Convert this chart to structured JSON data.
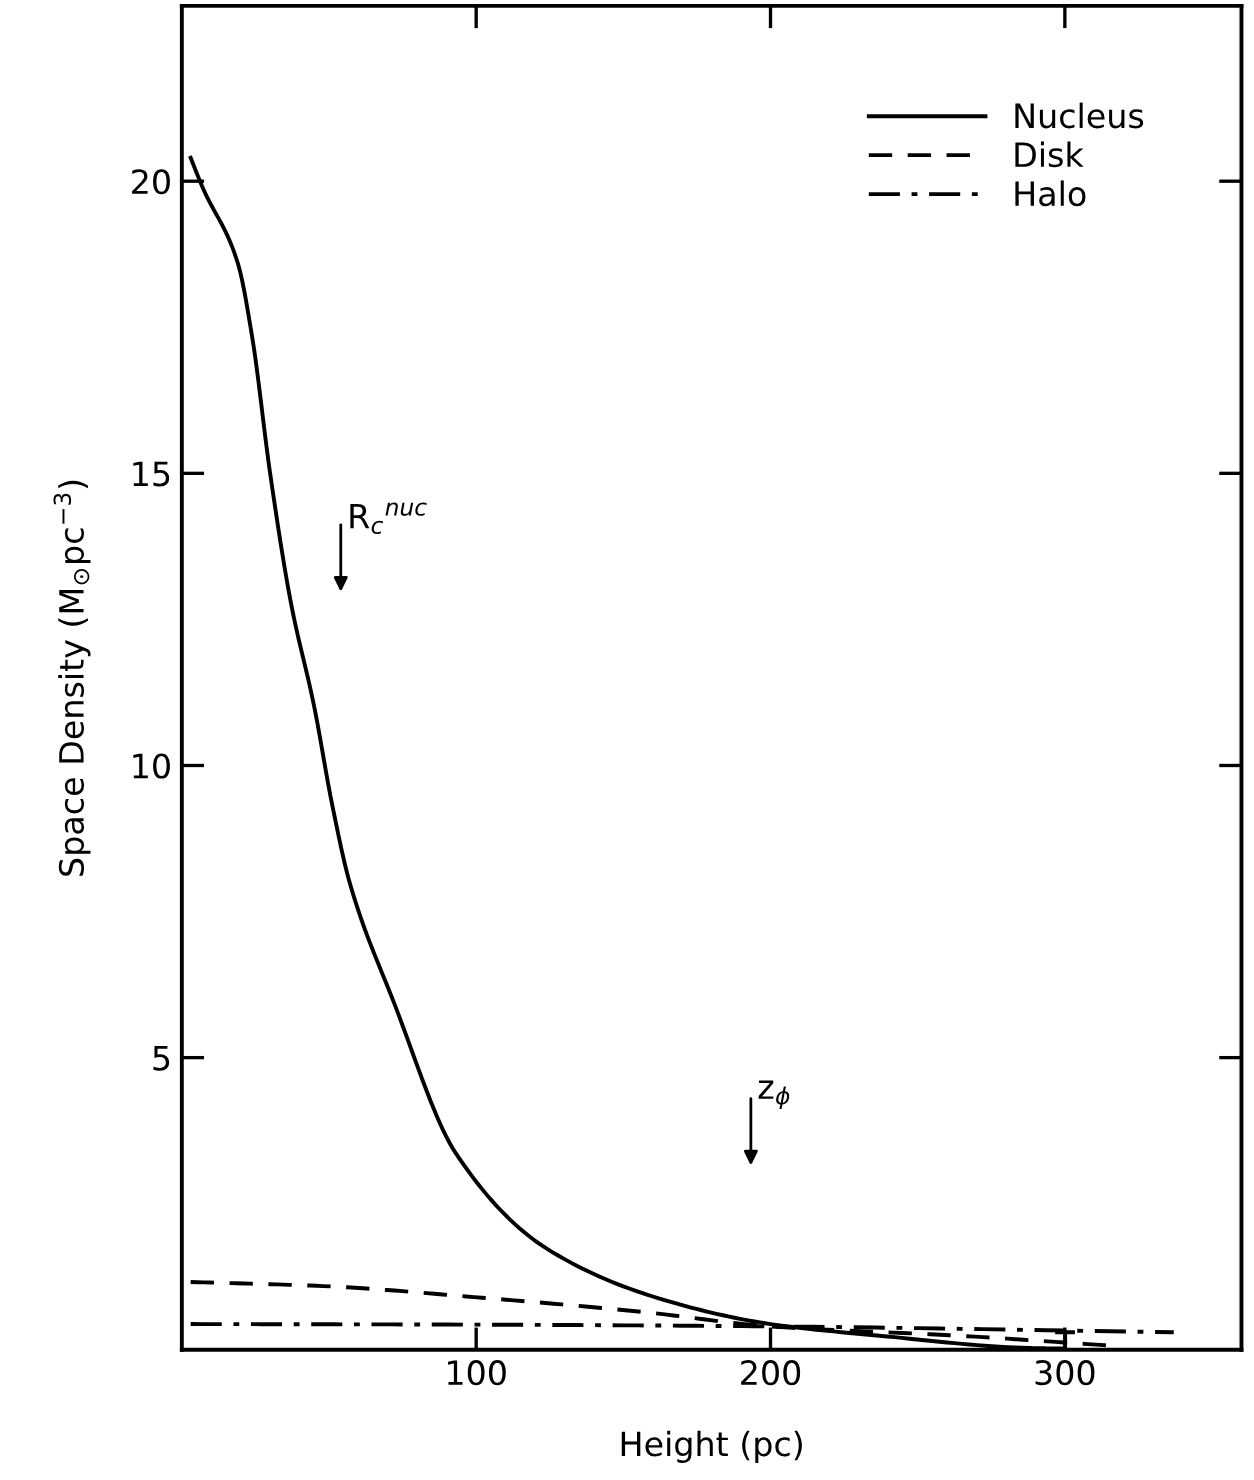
{
  "chart_data": {
    "type": "line",
    "xlabel": "Height (pc)",
    "ylabel": "Space Density (M$_{⊙}$pc$^{−3}$)",
    "xlim": [
      0,
      360
    ],
    "ylim": [
      0,
      23
    ],
    "xticks": [
      100,
      200,
      300
    ],
    "yticks": [
      5,
      10,
      15,
      20
    ],
    "legend": "top right",
    "grid": false,
    "marker": "none",
    "series": [
      {
        "name": "Nucleus",
        "color": "#000000",
        "line_style": "solid",
        "x": [
          3,
          7,
          19,
          24,
          30,
          37,
          45,
          51,
          57,
          72,
          93,
          124,
          164,
          200,
          237,
          288,
          300
        ],
        "values": [
          20.4,
          19.9,
          18.6,
          17.3,
          15.0,
          12.8,
          11.0,
          9.35,
          8.0,
          5.95,
          3.37,
          1.73,
          0.85,
          0.44,
          0.24,
          0.03,
          0.02
        ]
      },
      {
        "name": "Disk",
        "color": "#000000",
        "line_style": "dashed",
        "x": [
          3,
          48,
          102,
          156,
          200,
          264,
          316
        ],
        "values": [
          1.16,
          1.09,
          0.89,
          0.65,
          0.4,
          0.24,
          0.07
        ]
      },
      {
        "name": "Halo",
        "color": "#000000",
        "line_style": "dashdot",
        "x": [
          3,
          100,
          200,
          337
        ],
        "values": [
          0.44,
          0.43,
          0.4,
          0.3
        ]
      }
    ],
    "annotations": [
      "R$_{c}$$^{nuc}$",
      "z$_{ϕ}$"
    ]
  }
}
